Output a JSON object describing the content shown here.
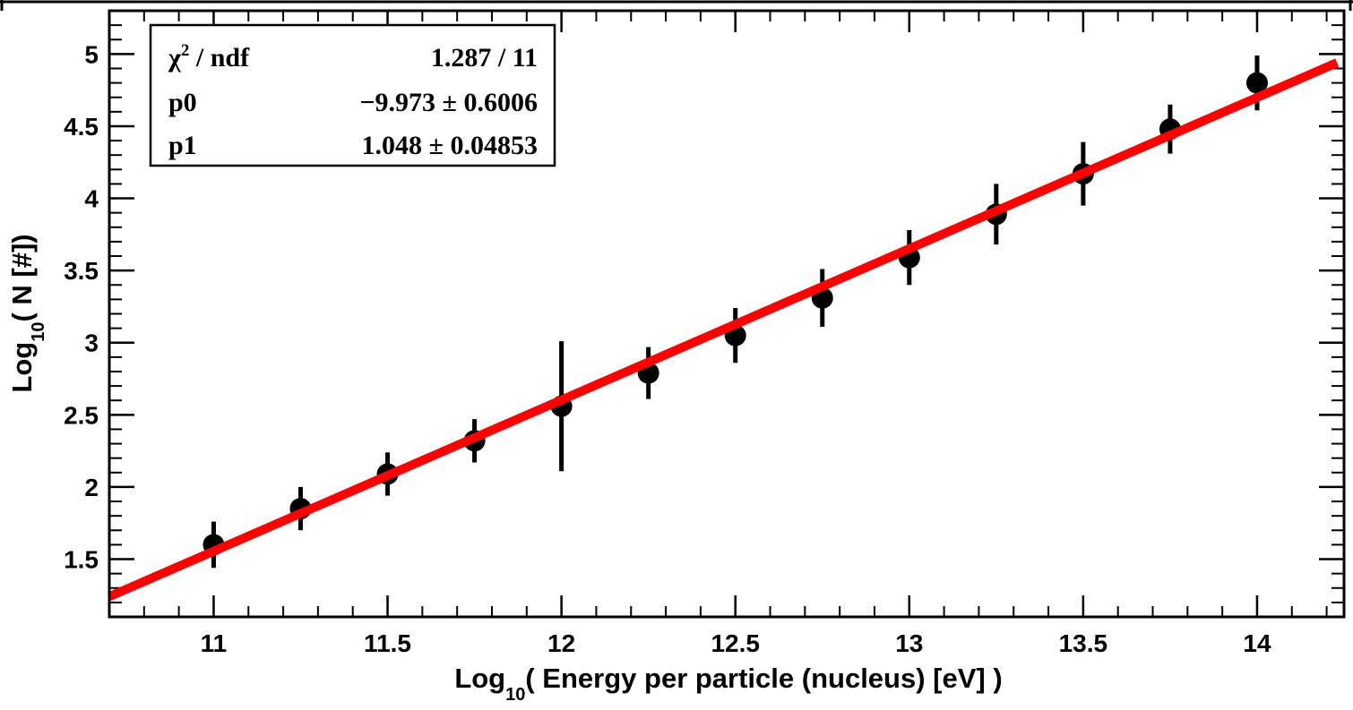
{
  "chart_data": {
    "type": "scatter",
    "xlabel": {
      "prefix": "Log",
      "subscript": "10",
      "text": "( Energy per particle (nucleus) [eV] )"
    },
    "ylabel": {
      "prefix": "Log",
      "subscript": "10",
      "text": "( N [#])"
    },
    "xlim": [
      10.7,
      14.25
    ],
    "ylim": [
      1.1,
      5.3
    ],
    "xticks": [
      {
        "value": 11,
        "label": "11"
      },
      {
        "value": 11.5,
        "label": "11.5"
      },
      {
        "value": 12,
        "label": "12"
      },
      {
        "value": 12.5,
        "label": "12.5"
      },
      {
        "value": 13,
        "label": "13"
      },
      {
        "value": 13.5,
        "label": "13.5"
      },
      {
        "value": 14,
        "label": "14"
      }
    ],
    "yticks": [
      {
        "value": 1.5,
        "label": "1.5"
      },
      {
        "value": 2,
        "label": "2"
      },
      {
        "value": 2.5,
        "label": "2.5"
      },
      {
        "value": 3,
        "label": "3"
      },
      {
        "value": 3.5,
        "label": "3.5"
      },
      {
        "value": 4,
        "label": "4"
      },
      {
        "value": 4.5,
        "label": "4.5"
      },
      {
        "value": 5,
        "label": "5"
      }
    ],
    "x_minor_step": 0.1,
    "y_minor_step": 0.1,
    "grid": false,
    "points": [
      {
        "x": 11.0,
        "y": 1.6,
        "err": 0.16
      },
      {
        "x": 11.25,
        "y": 1.85,
        "err": 0.15
      },
      {
        "x": 11.5,
        "y": 2.09,
        "err": 0.15
      },
      {
        "x": 11.75,
        "y": 2.32,
        "err": 0.15
      },
      {
        "x": 12.0,
        "y": 2.56,
        "err": 0.45
      },
      {
        "x": 12.25,
        "y": 2.79,
        "err": 0.18
      },
      {
        "x": 12.5,
        "y": 3.05,
        "err": 0.19
      },
      {
        "x": 12.75,
        "y": 3.31,
        "err": 0.2
      },
      {
        "x": 13.0,
        "y": 3.59,
        "err": 0.19
      },
      {
        "x": 13.25,
        "y": 3.89,
        "err": 0.21
      },
      {
        "x": 13.5,
        "y": 4.17,
        "err": 0.22
      },
      {
        "x": 13.75,
        "y": 4.48,
        "err": 0.17
      },
      {
        "x": 14.0,
        "y": 4.8,
        "err": 0.19
      }
    ],
    "fit": {
      "function": "pol1",
      "p0": -9.973,
      "p1": 1.048,
      "color": "#ff0000"
    },
    "stats_box": {
      "placement": "top-left",
      "rows": [
        {
          "label": "χ",
          "label_sup": "2",
          "label_rest": " / ndf",
          "value": "1.287 / 11"
        },
        {
          "label": "p0",
          "label_sup": "",
          "label_rest": "",
          "value": "−9.973  ± 0.6006"
        },
        {
          "label": "p1",
          "label_sup": "",
          "label_rest": "",
          "value": "1.048  ± 0.04853"
        }
      ]
    },
    "marker_color": "#000000"
  }
}
